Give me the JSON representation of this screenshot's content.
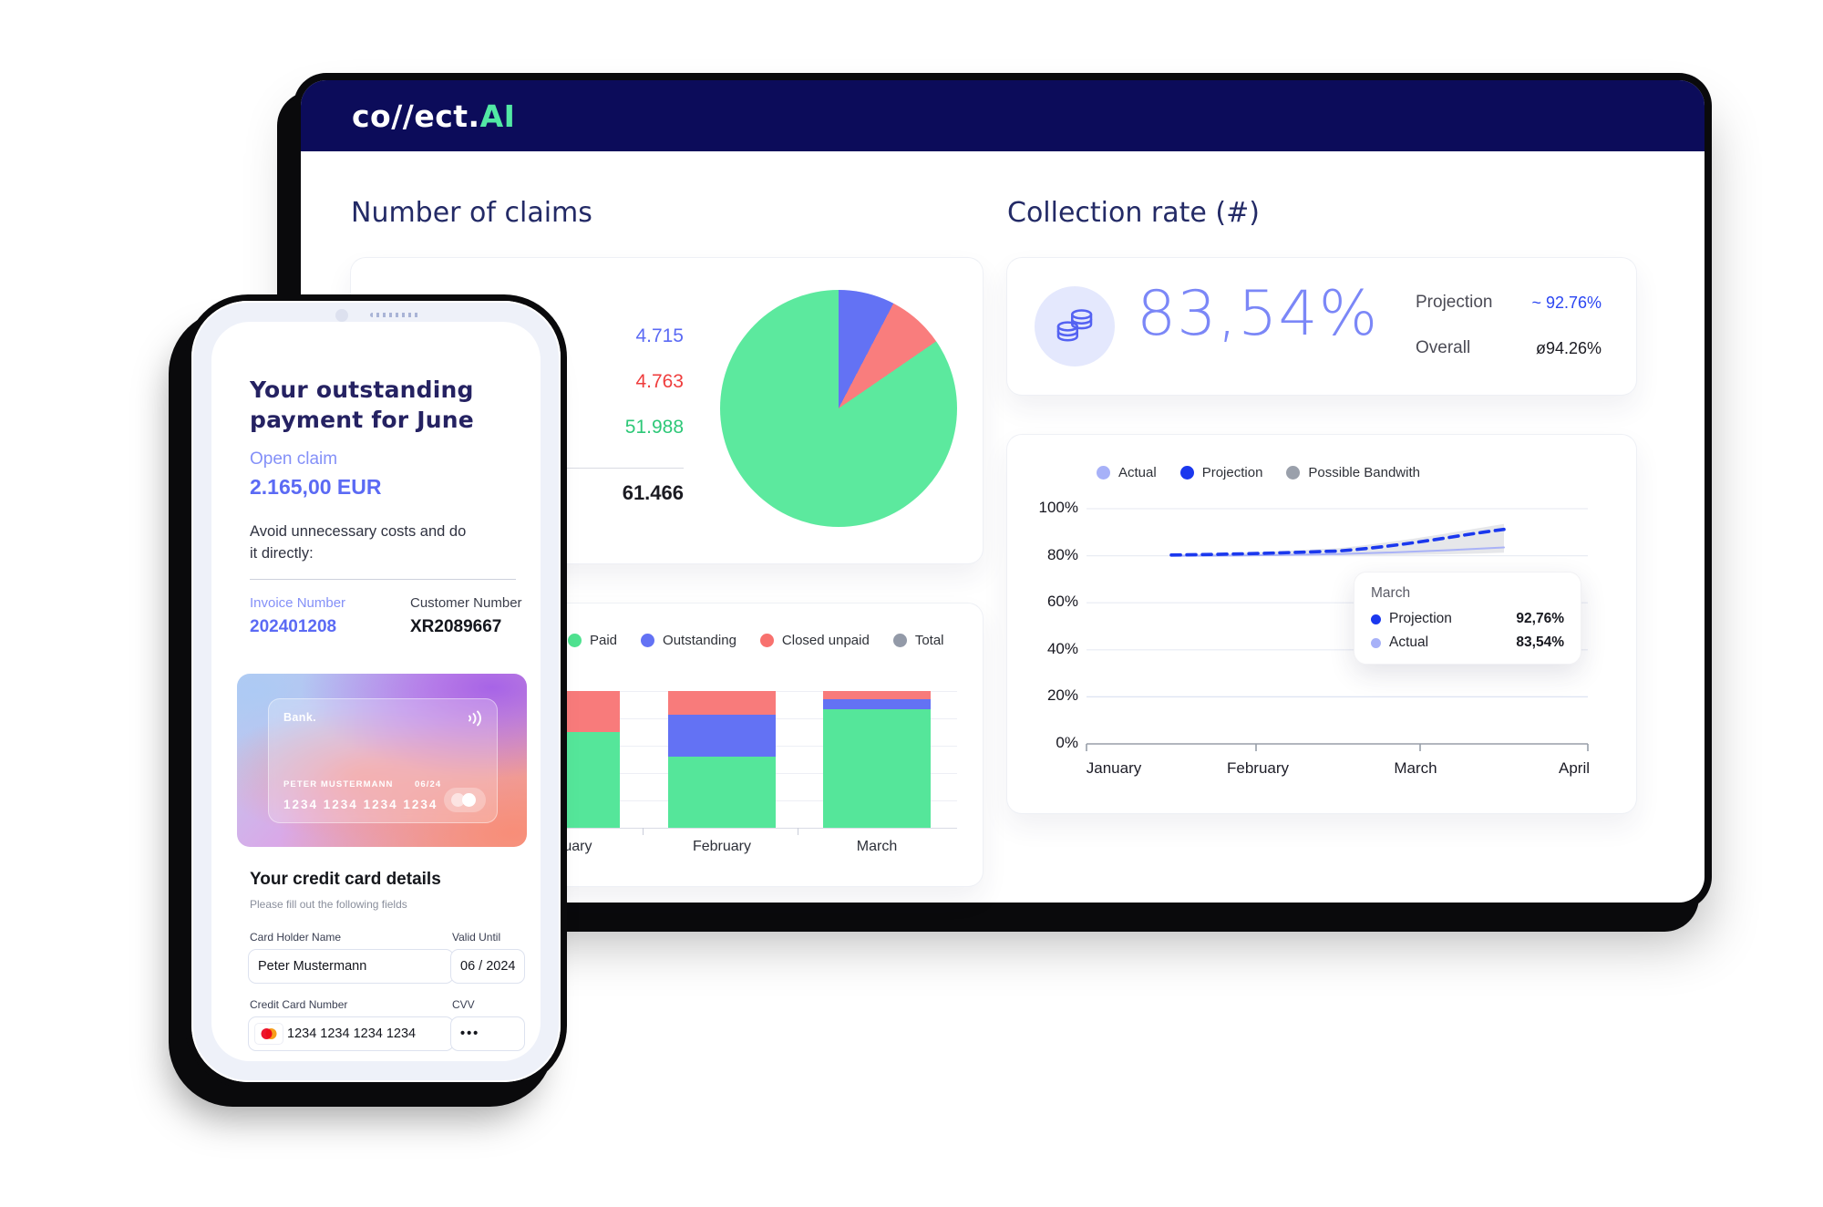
{
  "header": {
    "logo": {
      "prefix": "co//ect.",
      "suffix": "AI"
    }
  },
  "colors": {
    "navy": "#0c0c5a",
    "title_navy": "#232a66",
    "accent_indigo": "#5b6af4",
    "accent_blue": "#2b46f2",
    "green": "#52e8a4",
    "red": "#ef3d3d"
  },
  "claims": {
    "title": "Number of claims",
    "stat_values": [
      {
        "text": "4.715",
        "color": "#5b6af4"
      },
      {
        "text": "4.763",
        "color": "#ef3d3d"
      },
      {
        "text": "51.988",
        "color": "#2ec878"
      }
    ],
    "total": "61.466"
  },
  "collection": {
    "title": "Collection rate (#)",
    "rate": "83,54%",
    "projection_label": "Projection",
    "projection_value": "~ 92.76%",
    "overall_label": "Overall",
    "overall_value": "ø94.26%"
  },
  "phone": {
    "title": "Your outstanding payment for June",
    "open_claim_label": "Open claim",
    "open_claim_amount": "2.165,00 EUR",
    "body": "Avoid unnecessary costs and do it directly:",
    "invoice_label": "Invoice Number",
    "invoice_value": "202401208",
    "customer_label": "Customer Number",
    "customer_value": "XR2089667",
    "card": {
      "bank": "Bank.",
      "name_line": "PETER MUSTERMANN",
      "valid": "06/24",
      "number": "1234 1234 1234 1234"
    },
    "form": {
      "title": "Your credit card details",
      "subtitle": "Please fill out the following fields",
      "fields": [
        {
          "label": "Card Holder Name",
          "value": "Peter Mustermann"
        },
        {
          "label": "Valid Until",
          "value": "06 / 2024"
        },
        {
          "label": "Credit Card Number",
          "value": "1234 1234 1234 1234"
        },
        {
          "label": "CVV",
          "value": "•••"
        }
      ]
    }
  },
  "chart_data": [
    {
      "type": "pie",
      "title": "Number of claims",
      "labels": [
        "Outstanding",
        "Closed unpaid",
        "Paid"
      ],
      "values": [
        4715,
        4763,
        51988
      ],
      "total": 61466,
      "colors": [
        "#6372f4",
        "#f97d7d",
        "#5ce99e"
      ]
    },
    {
      "type": "bar",
      "stacked": true,
      "categories": [
        "January",
        "February",
        "March"
      ],
      "ylim": [
        0,
        100
      ],
      "series": [
        {
          "name": "Paid",
          "color": "#55e69a",
          "values": [
            70,
            52,
            87
          ]
        },
        {
          "name": "Outstanding",
          "color": "#6372f4",
          "values": [
            0,
            31,
            7
          ]
        },
        {
          "name": "Closed unpaid",
          "color": "#f87b7b",
          "values": [
            30,
            17,
            6
          ]
        }
      ],
      "legend": [
        {
          "label": "Paid",
          "color": "#4fe290"
        },
        {
          "label": "Outstanding",
          "color": "#6372f4"
        },
        {
          "label": "Closed unpaid",
          "color": "#f8716e"
        },
        {
          "label": "Total",
          "color": "#939aa8"
        }
      ]
    },
    {
      "type": "line",
      "x": [
        "January",
        "February",
        "March",
        "April"
      ],
      "yticks": [
        "100%",
        "80%",
        "60%",
        "40%",
        "20%",
        "0%"
      ],
      "ylim": [
        0,
        100
      ],
      "series": [
        {
          "name": "Actual",
          "color": "#a9b2f7",
          "values": [
            80,
            80.7,
            83.54
          ]
        },
        {
          "name": "Projection",
          "color": "#1b38ee",
          "dashed": true,
          "values": [
            80.3,
            82,
            92.76
          ]
        }
      ],
      "band": {
        "name": "Possible Bandwith",
        "color": "#d2d3d8",
        "upper": [
          80.5,
          83.2,
          93.5
        ],
        "lower": [
          80,
          80.2,
          81.3
        ]
      },
      "legend": [
        {
          "label": "Actual",
          "color": "#a7b1f8"
        },
        {
          "label": "Projection",
          "color": "#1b38ee"
        },
        {
          "label": "Possible Bandwith",
          "color": "#9aa0ab"
        }
      ],
      "tooltip": {
        "title": "March",
        "rows": [
          {
            "label": "Projection",
            "color": "#1b38ee",
            "value": "92,76%"
          },
          {
            "label": "Actual",
            "color": "#a7b1f8",
            "value": "83,54%"
          }
        ]
      }
    }
  ]
}
